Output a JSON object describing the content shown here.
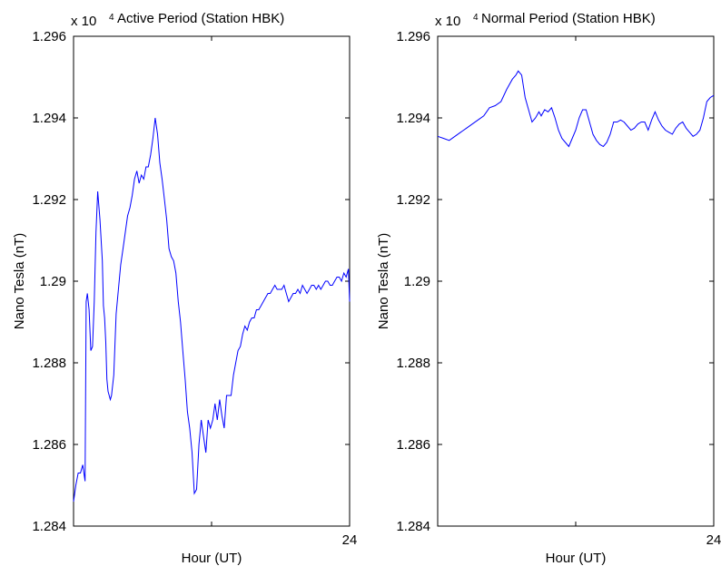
{
  "chart_data": [
    {
      "type": "line",
      "title": "Active Period (Station HBK)",
      "xlabel": "Hour (UT)",
      "ylabel": "Nano Tesla (nT)",
      "y_multiplier": "x 10",
      "y_multiplier_exp": "4",
      "xlim": [
        0,
        24
      ],
      "ylim": [
        1.284,
        1.296
      ],
      "yticks": [
        "1.284",
        "1.286",
        "1.288",
        "1.29",
        "1.292",
        "1.294",
        "1.296"
      ],
      "xtick_labels": [
        "24"
      ],
      "series": [
        {
          "color": "#0000ff",
          "x": [
            0.0,
            0.2,
            0.4,
            0.6,
            0.8,
            1.0,
            1.1,
            1.2,
            1.35,
            1.5,
            1.65,
            1.8,
            1.95,
            2.1,
            2.3,
            2.5,
            2.6,
            2.7,
            2.8,
            2.9,
            3.0,
            3.2,
            3.3,
            3.5,
            3.7,
            3.9,
            4.1,
            4.3,
            4.5,
            4.7,
            4.9,
            5.1,
            5.3,
            5.5,
            5.7,
            5.9,
            6.1,
            6.3,
            6.5,
            6.7,
            6.9,
            7.1,
            7.3,
            7.5,
            7.7,
            7.9,
            8.1,
            8.3,
            8.5,
            8.7,
            8.9,
            9.1,
            9.3,
            9.5,
            9.7,
            9.9,
            10.1,
            10.3,
            10.5,
            10.7,
            10.9,
            11.1,
            11.3,
            11.5,
            11.7,
            11.9,
            12.1,
            12.3,
            12.5,
            12.7,
            12.9,
            13.1,
            13.3,
            13.5,
            13.7,
            13.9,
            14.1,
            14.3,
            14.5,
            14.7,
            14.9,
            15.1,
            15.3,
            15.5,
            15.7,
            15.9,
            16.1,
            16.3,
            16.5,
            16.7,
            16.9,
            17.1,
            17.3,
            17.5,
            17.7,
            17.9,
            18.1,
            18.3,
            18.5,
            18.7,
            18.9,
            19.1,
            19.3,
            19.5,
            19.7,
            19.9,
            20.1,
            20.3,
            20.5,
            20.7,
            20.9,
            21.1,
            21.3,
            21.5,
            21.7,
            21.9,
            22.1,
            22.3,
            22.5,
            22.7,
            22.9,
            23.1,
            23.3,
            23.5,
            23.7,
            23.9,
            24.0
          ],
          "y": [
            1.2846,
            1.285,
            1.2853,
            1.2853,
            1.2855,
            1.2851,
            1.2895,
            1.2897,
            1.2893,
            1.2883,
            1.2884,
            1.2895,
            1.2912,
            1.2922,
            1.2915,
            1.2905,
            1.2894,
            1.2891,
            1.2885,
            1.2876,
            1.2873,
            1.2871,
            1.2872,
            1.2877,
            1.2892,
            1.2898,
            1.2904,
            1.2908,
            1.2912,
            1.2916,
            1.2918,
            1.2921,
            1.2925,
            1.2927,
            1.2924,
            1.2926,
            1.2925,
            1.2928,
            1.2928,
            1.2931,
            1.2935,
            1.294,
            1.2936,
            1.2929,
            1.2925,
            1.292,
            1.2915,
            1.2908,
            1.2906,
            1.2905,
            1.2902,
            1.2895,
            1.289,
            1.2883,
            1.2876,
            1.2868,
            1.2864,
            1.2858,
            1.2848,
            1.2849,
            1.286,
            1.2866,
            1.2862,
            1.2858,
            1.2866,
            1.2864,
            1.2866,
            1.287,
            1.2866,
            1.2871,
            1.2867,
            1.2864,
            1.2872,
            1.2872,
            1.2872,
            1.2877,
            1.288,
            1.2883,
            1.2884,
            1.2887,
            1.2889,
            1.2888,
            1.289,
            1.2891,
            1.2891,
            1.2893,
            1.2893,
            1.2894,
            1.2895,
            1.2896,
            1.2897,
            1.2897,
            1.2898,
            1.2899,
            1.2898,
            1.2898,
            1.2898,
            1.2899,
            1.2897,
            1.2895,
            1.2896,
            1.2897,
            1.2897,
            1.2898,
            1.2897,
            1.2899,
            1.2898,
            1.2897,
            1.2898,
            1.2899,
            1.2899,
            1.2898,
            1.2899,
            1.2898,
            1.2899,
            1.29,
            1.29,
            1.2899,
            1.2899,
            1.29,
            1.2901,
            1.2901,
            1.29,
            1.2902,
            1.2901,
            1.2903,
            1.2895
          ]
        }
      ]
    },
    {
      "type": "line",
      "title": "Normal Period (Station HBK)",
      "xlabel": "Hour (UT)",
      "ylabel": "Nano Tesla (nT)",
      "y_multiplier": "x 10",
      "y_multiplier_exp": "4",
      "xlim": [
        0,
        24
      ],
      "ylim": [
        1.284,
        1.296
      ],
      "yticks": [
        "1.284",
        "1.286",
        "1.288",
        "1.29",
        "1.292",
        "1.294",
        "1.296"
      ],
      "xtick_labels": [
        "24"
      ],
      "series": [
        {
          "color": "#0000ff",
          "x": [
            0.0,
            0.5,
            1.0,
            1.5,
            2.0,
            2.5,
            3.0,
            3.5,
            4.0,
            4.5,
            5.0,
            5.5,
            6.0,
            6.5,
            6.8,
            7.0,
            7.3,
            7.6,
            7.9,
            8.2,
            8.5,
            8.8,
            9.0,
            9.3,
            9.6,
            9.9,
            10.2,
            10.5,
            10.8,
            11.1,
            11.4,
            11.7,
            12.0,
            12.3,
            12.6,
            12.9,
            13.2,
            13.5,
            13.8,
            14.1,
            14.4,
            14.7,
            15.0,
            15.3,
            15.6,
            15.9,
            16.2,
            16.5,
            16.8,
            17.1,
            17.4,
            17.7,
            18.0,
            18.3,
            18.6,
            18.9,
            19.2,
            19.5,
            19.8,
            20.1,
            20.4,
            20.7,
            21.0,
            21.3,
            21.6,
            21.9,
            22.2,
            22.5,
            22.8,
            23.1,
            23.4,
            23.7,
            24.0
          ],
          "y": [
            1.29355,
            1.2935,
            1.29345,
            1.29355,
            1.29365,
            1.29375,
            1.29385,
            1.29395,
            1.29405,
            1.29425,
            1.2943,
            1.2944,
            1.2947,
            1.29495,
            1.29505,
            1.29515,
            1.29505,
            1.2945,
            1.2942,
            1.2939,
            1.294,
            1.29415,
            1.29405,
            1.2942,
            1.29415,
            1.29425,
            1.294,
            1.2937,
            1.2935,
            1.2934,
            1.2933,
            1.2935,
            1.2937,
            1.294,
            1.2942,
            1.2942,
            1.2939,
            1.2936,
            1.29345,
            1.29335,
            1.2933,
            1.2934,
            1.2936,
            1.2939,
            1.2939,
            1.29395,
            1.2939,
            1.2938,
            1.2937,
            1.29375,
            1.29385,
            1.2939,
            1.2939,
            1.2937,
            1.29395,
            1.29415,
            1.29395,
            1.2938,
            1.2937,
            1.29365,
            1.2936,
            1.29375,
            1.29385,
            1.2939,
            1.29375,
            1.29365,
            1.29355,
            1.2936,
            1.2937,
            1.294,
            1.2944,
            1.2945,
            1.29455
          ]
        }
      ]
    }
  ]
}
